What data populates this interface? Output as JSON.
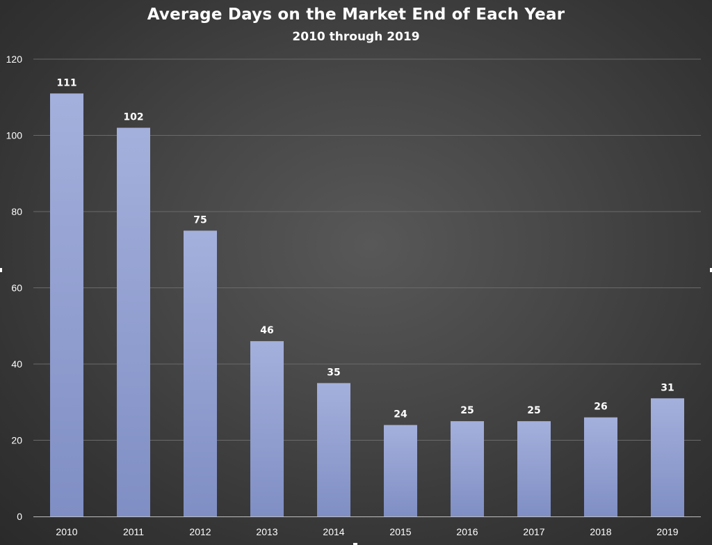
{
  "chart_data": {
    "type": "bar",
    "title": "Average Days on the Market End of Each Year",
    "subtitle": "2010 through 2019",
    "categories": [
      "2010",
      "2011",
      "2012",
      "2013",
      "2014",
      "2015",
      "2016",
      "2017",
      "2018",
      "2019"
    ],
    "values": [
      111,
      102,
      75,
      46,
      35,
      24,
      25,
      25,
      26,
      31
    ],
    "data_labels": [
      "111",
      "102",
      "75",
      "46",
      "35",
      "24",
      "25",
      "25",
      "26",
      "31"
    ],
    "y_ticks": [
      "0",
      "20",
      "40",
      "60",
      "80",
      "100",
      "120"
    ],
    "ylim": [
      0,
      120
    ],
    "xlabel": "",
    "ylabel": "",
    "grid": true,
    "legend": "none",
    "colors": {
      "bar_top": "#a4b0dc",
      "bar_bottom": "#7f8ec4",
      "grid": "#6a6a6a",
      "axis": "#bdbdbd",
      "text": "#ffffff"
    }
  }
}
